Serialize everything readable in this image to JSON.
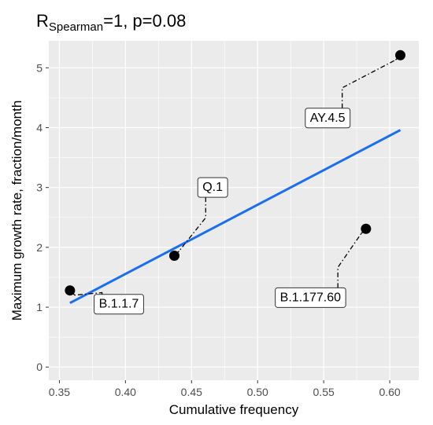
{
  "chart_data": {
    "type": "scatter",
    "title": {
      "prefix": "R",
      "subscript": "Spearman",
      "suffix": "=1, p=0.08"
    },
    "xlabel": "Cumulative frequency",
    "ylabel": "Maximum growth rate, fraction/month",
    "xlim": [
      0.342,
      0.622
    ],
    "ylim": [
      -0.22,
      5.45
    ],
    "xticks": [
      0.35,
      0.4,
      0.45,
      0.5,
      0.55,
      0.6
    ],
    "xtick_labels": [
      "0.35",
      "0.40",
      "0.45",
      "0.50",
      "0.55",
      "0.60"
    ],
    "yticks": [
      0,
      1,
      2,
      3,
      4,
      5
    ],
    "ytick_labels": [
      "0",
      "1",
      "2",
      "3",
      "4",
      "5"
    ],
    "grid": true,
    "points": [
      {
        "label": "B.1.1.7",
        "x": 0.358,
        "y": 1.28,
        "label_x": 0.395,
        "label_y": 1.07
      },
      {
        "label": "Q.1",
        "x": 0.437,
        "y": 1.86,
        "label_x": 0.466,
        "label_y": 3.02
      },
      {
        "label": "B.1.177.60",
        "x": 0.582,
        "y": 2.31,
        "label_x": 0.54,
        "label_y": 1.18
      },
      {
        "label": "AY.4.5",
        "x": 0.608,
        "y": 5.21,
        "label_x": 0.553,
        "label_y": 4.18
      }
    ],
    "trend_line": {
      "x": [
        0.358,
        0.608
      ],
      "y": [
        1.07,
        3.96
      ]
    },
    "colors": {
      "panel": "#ebebeb",
      "grid": "#ffffff",
      "point": "#000000",
      "trend": "#1a6ef2",
      "label_border": "#333333",
      "tick_text": "#4d4d4d"
    }
  }
}
